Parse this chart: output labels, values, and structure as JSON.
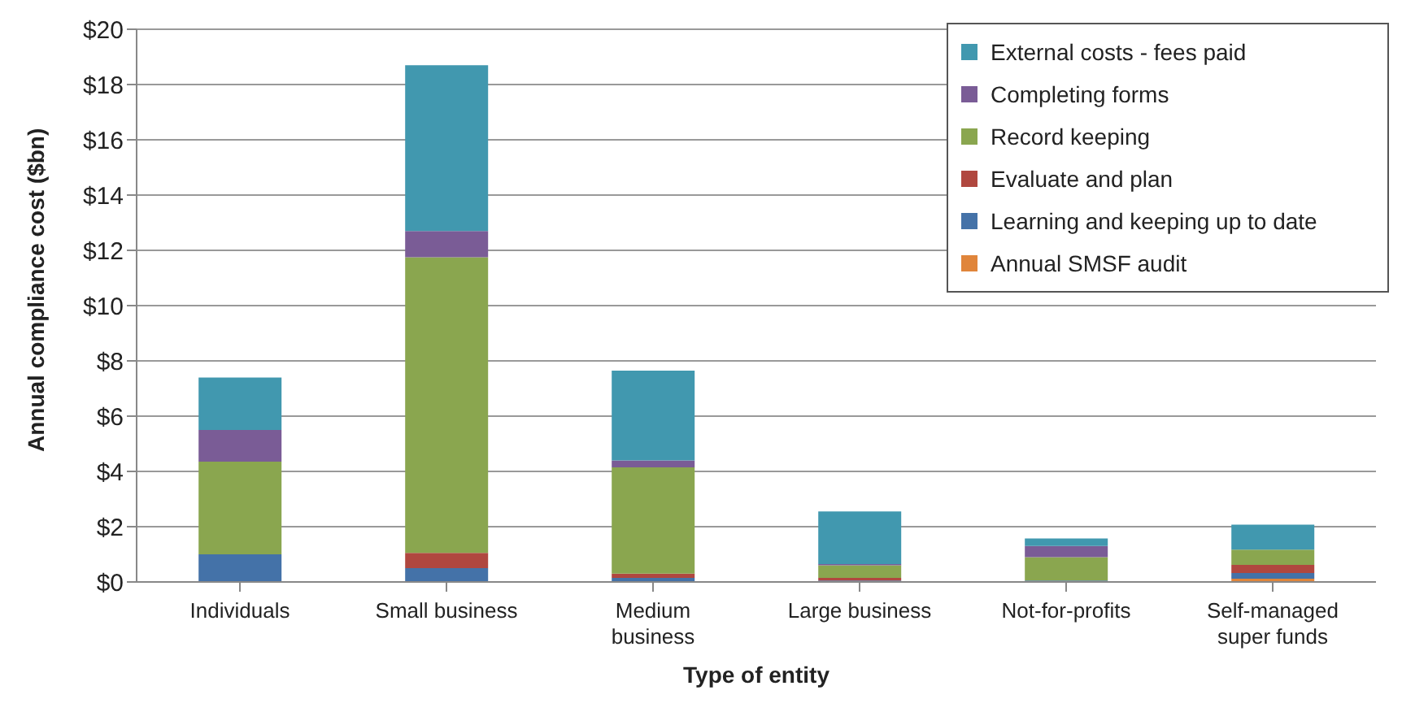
{
  "chart_data": {
    "type": "bar",
    "stacked": true,
    "xlabel": "Type of entity",
    "ylabel": "Annual compliance  cost ($bn)",
    "categories": [
      "Individuals",
      "Small business",
      "Medium business",
      "Large business",
      "Not-for-profits",
      "Self-managed super funds"
    ],
    "series": [
      {
        "name": "Annual SMSF audit",
        "color": "#e0853b",
        "values": [
          0,
          0,
          0,
          0,
          0,
          0.12
        ]
      },
      {
        "name": "Learning and keeping up to date",
        "color": "#4472a8",
        "values": [
          1.0,
          0.5,
          0.15,
          0.05,
          0.05,
          0.2
        ]
      },
      {
        "name": "Evaluate and plan",
        "color": "#b0473f",
        "values": [
          0,
          0.55,
          0.15,
          0.1,
          0,
          0.3
        ]
      },
      {
        "name": "Record keeping",
        "color": "#8aa64f",
        "values": [
          3.35,
          10.7,
          3.85,
          0.45,
          0.85,
          0.55
        ]
      },
      {
        "name": "Completing forms",
        "color": "#7a5c96",
        "values": [
          1.15,
          0.95,
          0.25,
          0.05,
          0.4,
          0
        ]
      },
      {
        "name": "External costs - fees paid",
        "color": "#4198af",
        "values": [
          1.9,
          6.0,
          3.25,
          1.9,
          0.27,
          0.9
        ]
      }
    ],
    "ylim": [
      0,
      20
    ],
    "yticks": [
      {
        "value": 0,
        "label": "$0"
      },
      {
        "value": 2,
        "label": "$2"
      },
      {
        "value": 4,
        "label": "$4"
      },
      {
        "value": 6,
        "label": "$6"
      },
      {
        "value": 8,
        "label": "$8"
      },
      {
        "value": 10,
        "label": "$10"
      },
      {
        "value": 12,
        "label": "$12"
      },
      {
        "value": 14,
        "label": "$14"
      },
      {
        "value": 16,
        "label": "$16"
      },
      {
        "value": 18,
        "label": "$18"
      },
      {
        "value": 20,
        "label": "$20"
      }
    ],
    "grid": "y",
    "legend": "top right"
  }
}
